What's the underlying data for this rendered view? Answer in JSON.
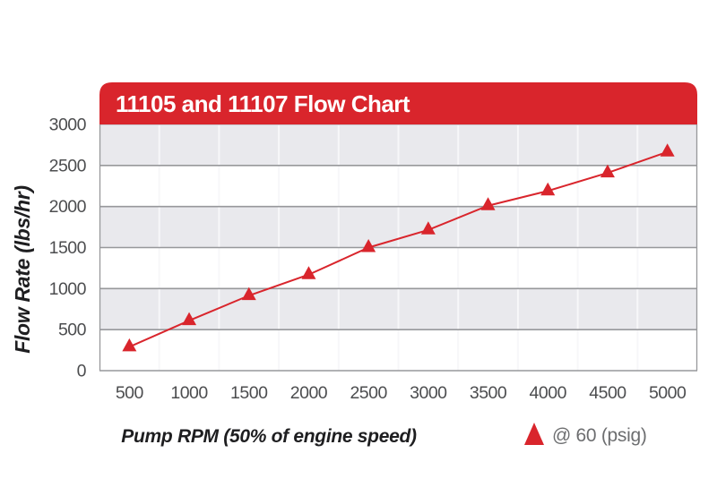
{
  "chart": {
    "title": "11105 and 11107 Flow Chart",
    "y_axis_title": "Flow Rate (lbs/hr)",
    "x_axis_title": "Pump RPM (50% of engine speed)",
    "legend": {
      "marker_icon": "red-triangle-icon",
      "label": "@ 60 (psig)"
    },
    "colors": {
      "accent_red": "#d9252c",
      "band_gray": "#e9e9ed",
      "grid_gray": "#97989b",
      "grid_light": "#c9c9cf",
      "vline_white": "#f7f7f9",
      "tick_text": "#4c4d4f",
      "legend_text": "#6d6e70",
      "axis_title_text": "#1e1e20",
      "title_text": "#ffffff"
    }
  },
  "chart_data": {
    "type": "line",
    "title": "11105 and 11107 Flow Chart",
    "xlabel": "Pump RPM (50% of engine speed)",
    "ylabel": "Flow Rate (lbs/hr)",
    "x": [
      500,
      1000,
      1500,
      2000,
      2500,
      3000,
      3500,
      4000,
      4500,
      5000
    ],
    "x_tick_labels": [
      "500",
      "1000",
      "1500",
      "2000",
      "2500",
      "3000",
      "3500",
      "4000",
      "4500",
      "5000"
    ],
    "y_tick_labels": [
      "0",
      "500",
      "1000",
      "1500",
      "2000",
      "2500",
      "3000"
    ],
    "ylim": [
      0,
      3000
    ],
    "y_step": 500,
    "series": [
      {
        "name": "@ 60 (psig)",
        "marker": "triangle",
        "values": [
          290,
          610,
          915,
          1170,
          1500,
          1715,
          2010,
          2190,
          2410,
          2665
        ]
      }
    ],
    "grid": "horizontal gridlines with alternating gray/white bands; vertical column lines visible on gray bands",
    "legend_position": "bottom-right"
  }
}
